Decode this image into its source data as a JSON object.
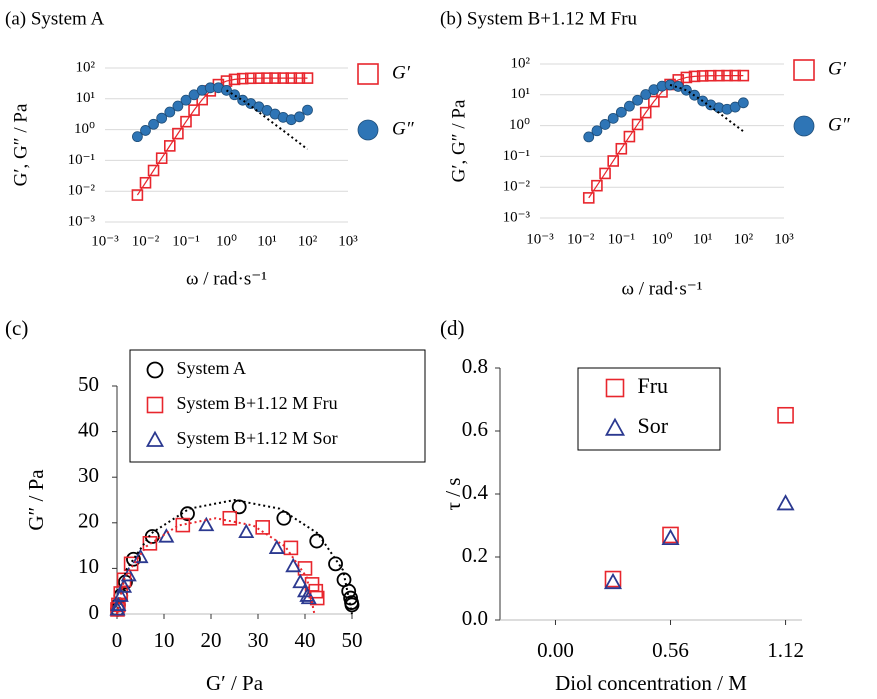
{
  "chart_data": [
    {
      "type": "scatter",
      "title": "(a) System A",
      "xlabel": "ω / rad·s⁻¹",
      "ylabel": "G′, G″ / Pa",
      "xscale": "log",
      "yscale": "log",
      "xlim": [
        0.001,
        1000
      ],
      "ylim": [
        0.001,
        100
      ],
      "xticks": [
        {
          "value": 0.001,
          "label": "10⁻³"
        },
        {
          "value": 0.01,
          "label": "10⁻²"
        },
        {
          "value": 0.1,
          "label": "10⁻¹"
        },
        {
          "value": 1,
          "label": "10⁰"
        },
        {
          "value": 10,
          "label": "10¹"
        },
        {
          "value": 100,
          "label": "10²"
        },
        {
          "value": 1000,
          "label": "10³"
        }
      ],
      "yticks": [
        {
          "value": 0.001,
          "label": "10⁻³"
        },
        {
          "value": 0.01,
          "label": "10⁻²"
        },
        {
          "value": 0.1,
          "label": "10⁻¹"
        },
        {
          "value": 1,
          "label": "10⁰"
        },
        {
          "value": 10,
          "label": "10¹"
        },
        {
          "value": 100,
          "label": "10²"
        }
      ],
      "grid": true,
      "legend": "right",
      "series": [
        {
          "name": "G′",
          "color": "#e8262d",
          "marker": "square",
          "line": "solid",
          "x": [
            0.00631,
            0.01,
            0.0158,
            0.0251,
            0.0398,
            0.0631,
            0.1,
            0.158,
            0.251,
            0.398,
            0.631,
            1,
            1.58,
            2.51,
            3.98,
            6.31,
            10,
            15.8,
            25.1,
            39.8,
            63.1,
            100
          ],
          "values": [
            0.0075,
            0.0188,
            0.047,
            0.118,
            0.296,
            0.74,
            1.81,
            4.29,
            9.4,
            18.1,
            28.9,
            37.6,
            42.7,
            45.2,
            46.3,
            46.7,
            46.9,
            47,
            47,
            47,
            47,
            47
          ]
        },
        {
          "name": "G″",
          "color": "#2e75b6",
          "marker": "circle",
          "line": "none",
          "x": [
            0.00631,
            0.01,
            0.0158,
            0.0251,
            0.0398,
            0.0631,
            0.1,
            0.158,
            0.251,
            0.398,
            0.631,
            1,
            1.58,
            2.51,
            3.98,
            6.31,
            10,
            15.8,
            25.1,
            39.8,
            63.1,
            100
          ],
          "values": [
            0.59,
            0.94,
            1.49,
            2.35,
            3.72,
            5.83,
            9.04,
            13.5,
            18.9,
            22.7,
            22.9,
            18.8,
            13.5,
            9.0,
            7.0,
            5.5,
            4.2,
            3.2,
            2.5,
            2.1,
            2.6,
            4.3
          ]
        },
        {
          "color": "#000000",
          "marker": "none",
          "line": "dotted",
          "x": [
            1,
            3.16,
            10,
            31.6,
            100
          ],
          "values": [
            18.8,
            7.4,
            2.3,
            0.74,
            0.23
          ]
        }
      ]
    },
    {
      "type": "scatter",
      "title": "(b) System B+1.12 M Fru",
      "xlabel": "ω / rad·s⁻¹",
      "ylabel": "G′, G″ / Pa",
      "xscale": "log",
      "yscale": "log",
      "xlim": [
        0.001,
        1000
      ],
      "ylim": [
        0.001,
        100
      ],
      "xticks": [
        {
          "value": 0.001,
          "label": "10⁻³"
        },
        {
          "value": 0.01,
          "label": "10⁻²"
        },
        {
          "value": 0.1,
          "label": "10⁻¹"
        },
        {
          "value": 1,
          "label": "10⁰"
        },
        {
          "value": 10,
          "label": "10¹"
        },
        {
          "value": 100,
          "label": "10²"
        },
        {
          "value": 1000,
          "label": "10³"
        }
      ],
      "yticks": [
        {
          "value": 0.001,
          "label": "10⁻³"
        },
        {
          "value": 0.01,
          "label": "10⁻²"
        },
        {
          "value": 0.1,
          "label": "10⁻¹"
        },
        {
          "value": 1,
          "label": "10⁰"
        },
        {
          "value": 10,
          "label": "10¹"
        },
        {
          "value": 100,
          "label": "10²"
        }
      ],
      "grid": true,
      "legend": "right",
      "series": [
        {
          "name": "G′",
          "color": "#e8262d",
          "marker": "square",
          "line": "solid",
          "x": [
            0.0158,
            0.0251,
            0.0398,
            0.0631,
            0.1,
            0.158,
            0.251,
            0.398,
            0.631,
            1,
            1.58,
            2.51,
            3.98,
            6.31,
            10,
            15.8,
            25.1,
            39.8,
            63.1,
            100
          ],
          "values": [
            0.0045,
            0.0112,
            0.028,
            0.071,
            0.177,
            0.44,
            1.09,
            2.64,
            6.05,
            12.4,
            21.6,
            30.5,
            36.6,
            39.6,
            41,
            41.6,
            41.8,
            42,
            42,
            42
          ]
        },
        {
          "name": "G″",
          "color": "#2e75b6",
          "marker": "circle",
          "line": "none",
          "x": [
            0.0158,
            0.0251,
            0.0398,
            0.0631,
            0.1,
            0.158,
            0.251,
            0.398,
            0.631,
            1,
            1.58,
            2.51,
            3.98,
            6.31,
            10,
            15.8,
            25.1,
            39.8,
            63.1,
            100
          ],
          "values": [
            0.43,
            0.68,
            1.09,
            1.72,
            2.72,
            4.28,
            6.67,
            10.2,
            14.7,
            19.1,
            21,
            18.7,
            14.1,
            9.7,
            6.3,
            4.7,
            3.8,
            3.4,
            4,
            5.5
          ]
        },
        {
          "color": "#000000",
          "marker": "none",
          "line": "dotted",
          "x": [
            1.58,
            3.98,
            10,
            25.1,
            100
          ],
          "values": [
            21,
            14.1,
            6.3,
            2.6,
            0.65
          ]
        }
      ]
    },
    {
      "type": "scatter",
      "title": "(c)",
      "xlabel": "G′ / Pa",
      "ylabel": "G″ / Pa",
      "xlim": [
        0,
        50
      ],
      "ylim": [
        0,
        50
      ],
      "xticks": [
        0,
        10,
        20,
        30,
        40,
        50
      ],
      "yticks": [
        0,
        10,
        20,
        30,
        40,
        50
      ],
      "grid": false,
      "legend": "upper left",
      "series": [
        {
          "name": "System A",
          "color": "#000000",
          "marker": "circle-open",
          "line": "none",
          "x": [
            0.1,
            0.3,
            0.8,
            1.8,
            3.5,
            7.5,
            15,
            26,
            35.5,
            42.5,
            46.5,
            48.3,
            49.3,
            49.7,
            49.9,
            50
          ],
          "values": [
            1,
            2,
            4,
            7,
            12,
            17,
            22,
            23.5,
            21,
            16,
            11,
            7.5,
            5,
            3.5,
            2.5,
            2
          ]
        },
        {
          "name": "System B+1.12 M Fru",
          "color": "#e8262d",
          "marker": "square",
          "line": "none",
          "x": [
            0.1,
            0.3,
            0.8,
            1.5,
            3,
            7,
            14,
            24,
            31,
            37,
            40,
            41.5,
            42.3,
            42.6
          ],
          "values": [
            1,
            2,
            4.5,
            7.5,
            11,
            15.5,
            19.5,
            21,
            19,
            14.5,
            10,
            6.5,
            5,
            3.5
          ]
        },
        {
          "name": "System B+1.12 M Sor",
          "color": "#2b3990",
          "marker": "triangle",
          "line": "none",
          "x": [
            0.1,
            0.3,
            0.8,
            1.5,
            2.5,
            5,
            10.5,
            19,
            27.5,
            34,
            37.5,
            39,
            40,
            40.5,
            40.8
          ],
          "values": [
            1,
            2,
            4,
            6,
            8.5,
            12.5,
            17,
            19.5,
            18,
            14.5,
            10.5,
            7,
            5,
            4,
            3.5
          ]
        },
        {
          "color": "#000000",
          "marker": "none",
          "line": "dotted",
          "x": [
            0,
            1.9,
            7.3,
            15.4,
            25,
            34.6,
            42.7,
            48.1,
            50
          ],
          "values": [
            0,
            9.6,
            17.7,
            23.1,
            25,
            23.1,
            17.7,
            9.6,
            0
          ]
        },
        {
          "color": "#e8262d",
          "marker": "none",
          "line": "dotted",
          "x": [
            0,
            1.6,
            6.2,
            13,
            21,
            29,
            35.8,
            40.4,
            42
          ],
          "values": [
            0,
            8,
            14.8,
            19.4,
            21,
            19.4,
            14.8,
            8,
            0
          ]
        }
      ]
    },
    {
      "type": "scatter",
      "title": "(d)",
      "xlabel": "Diol concentration / M",
      "ylabel": "τ / s",
      "xlim": [
        -0.27,
        1.2
      ],
      "ylim": [
        0,
        0.8
      ],
      "xticks": [
        {
          "value": 0,
          "label": "0.00"
        },
        0.56,
        1.12
      ],
      "yticks": [
        {
          "value": 0,
          "label": "0.0"
        },
        0.2,
        0.4,
        0.6,
        0.8
      ],
      "grid": false,
      "legend": "upper center",
      "series": [
        {
          "name": "Fru",
          "color": "#e8262d",
          "marker": "square",
          "line": "none",
          "x": [
            0.28,
            0.56,
            1.12
          ],
          "values": [
            0.13,
            0.27,
            0.65
          ]
        },
        {
          "name": "Sor",
          "color": "#2b3990",
          "marker": "triangle",
          "line": "none",
          "x": [
            0.28,
            0.56,
            1.12
          ],
          "values": [
            0.12,
            0.26,
            0.37
          ]
        }
      ]
    }
  ]
}
